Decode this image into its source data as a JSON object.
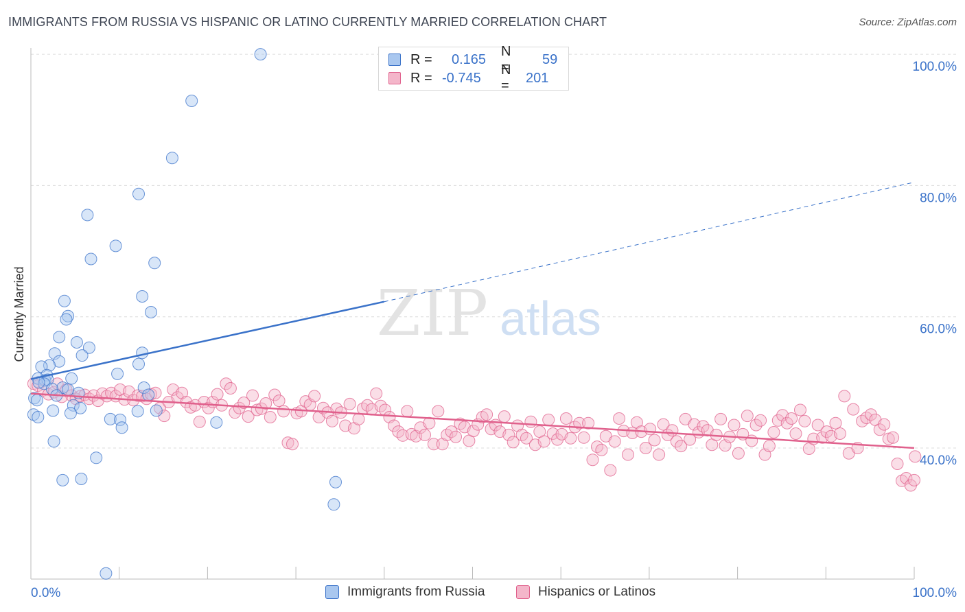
{
  "title": "IMMIGRANTS FROM RUSSIA VS HISPANIC OR LATINO CURRENTLY MARRIED CORRELATION CHART",
  "source": "Source: ZipAtlas.com",
  "watermark": {
    "zip": "ZIP",
    "atlas": "atlas"
  },
  "legend": {
    "r_label": "R =",
    "n_label": "N =",
    "rows": [
      {
        "r": "0.165",
        "n": "59"
      },
      {
        "r": "-0.745",
        "n": "201"
      }
    ]
  },
  "bottom_legend": [
    "Immigrants from Russia",
    "Hispanics or Latinos"
  ],
  "colors": {
    "blue": "#3a72c9",
    "blue_fill": "#a9c7ef",
    "pink": "#e0608c",
    "pink_fill": "#f4b6ca",
    "grid": "#dcdcdc"
  },
  "chart_data": {
    "type": "scatter",
    "ylabel": "Currently Married",
    "xlabel": "",
    "xlim": [
      0,
      100
    ],
    "ylim": [
      20,
      102
    ],
    "x_tick_labels": [
      "0.0%",
      "100.0%"
    ],
    "y_tick_labels": [
      "40.0%",
      "60.0%",
      "80.0%",
      "100.0%"
    ],
    "y_tick_values": [
      40,
      60,
      80,
      100
    ],
    "grid": true,
    "legend_placement": "top-center",
    "series": [
      {
        "name": "Immigrants from Russia",
        "color": "#3a72c9",
        "points": [
          [
            26,
            100
          ],
          [
            18.2,
            92.9
          ],
          [
            16,
            84.2
          ],
          [
            12.2,
            78.7
          ],
          [
            6.4,
            75.5
          ],
          [
            9.6,
            70.8
          ],
          [
            6.8,
            68.8
          ],
          [
            14,
            68.2
          ],
          [
            3.8,
            62.4
          ],
          [
            12.6,
            63.1
          ],
          [
            13.6,
            60.7
          ],
          [
            4.2,
            60.1
          ],
          [
            4,
            59.6
          ],
          [
            3.2,
            56.9
          ],
          [
            5.2,
            56.1
          ],
          [
            6.6,
            55.3
          ],
          [
            5.8,
            54.1
          ],
          [
            12.6,
            54.5
          ],
          [
            2.7,
            54.4
          ],
          [
            3.2,
            53.2
          ],
          [
            12.2,
            52.8
          ],
          [
            2.1,
            52.6
          ],
          [
            1.2,
            52.4
          ],
          [
            9.8,
            51.3
          ],
          [
            1.8,
            51.1
          ],
          [
            0.8,
            50.6
          ],
          [
            4.6,
            50.6
          ],
          [
            1.6,
            50.3
          ],
          [
            1.9,
            50.4
          ],
          [
            1.5,
            49.8
          ],
          [
            0.9,
            50.0
          ],
          [
            3.6,
            49.2
          ],
          [
            12.8,
            49.2
          ],
          [
            4.2,
            48.9
          ],
          [
            2.4,
            49.0
          ],
          [
            5.4,
            48.4
          ],
          [
            13.3,
            48.1
          ],
          [
            2.9,
            48.0
          ],
          [
            0.4,
            47.6
          ],
          [
            0.7,
            47.3
          ],
          [
            4.8,
            46.5
          ],
          [
            5.6,
            46.1
          ],
          [
            2.5,
            45.7
          ],
          [
            14.2,
            45.7
          ],
          [
            0.3,
            45.1
          ],
          [
            12.1,
            45.6
          ],
          [
            4.5,
            45.3
          ],
          [
            0.8,
            44.7
          ],
          [
            9.0,
            44.4
          ],
          [
            10.1,
            44.3
          ],
          [
            21,
            43.9
          ],
          [
            10.3,
            43.1
          ],
          [
            2.6,
            41.0
          ],
          [
            7.4,
            38.5
          ],
          [
            3.6,
            35.1
          ],
          [
            5.7,
            35.3
          ],
          [
            34.5,
            34.8
          ],
          [
            34.3,
            31.4
          ],
          [
            8.5,
            20.9
          ]
        ],
        "trend": {
          "x0": 0,
          "y0": 50.5,
          "x1": 40,
          "y1": 62.3,
          "dashed_to_x": 100,
          "dashed_to_y": 80.5
        }
      },
      {
        "name": "Hispanics or Latinos",
        "color": "#e0608c",
        "points": [
          [
            0.3,
            49.8
          ],
          [
            0.8,
            49.5
          ],
          [
            1.4,
            48.8
          ],
          [
            2,
            48.2
          ],
          [
            2.6,
            48.5
          ],
          [
            3,
            49.8
          ],
          [
            3.5,
            47.8
          ],
          [
            4,
            48.9
          ],
          [
            4.6,
            48.0
          ],
          [
            5.1,
            47.5
          ],
          [
            5.6,
            47.9
          ],
          [
            6.1,
            48.1
          ],
          [
            6.6,
            47.5
          ],
          [
            7.1,
            48.0
          ],
          [
            7.6,
            47.2
          ],
          [
            8.1,
            48.3
          ],
          [
            8.6,
            47.9
          ],
          [
            9.1,
            48.4
          ],
          [
            9.6,
            47.9
          ],
          [
            10.1,
            48.9
          ],
          [
            10.6,
            47.4
          ],
          [
            11.1,
            48.6
          ],
          [
            11.6,
            47.3
          ],
          [
            12.1,
            48.0
          ],
          [
            12.6,
            47.9
          ],
          [
            13.1,
            47.5
          ],
          [
            13.6,
            48.2
          ],
          [
            14.1,
            48.4
          ],
          [
            14.6,
            46.1
          ],
          [
            15.1,
            44.9
          ],
          [
            15.6,
            47.0
          ],
          [
            16.1,
            48.9
          ],
          [
            16.6,
            47.7
          ],
          [
            17.1,
            48.4
          ],
          [
            17.6,
            47.0
          ],
          [
            18.1,
            46.2
          ],
          [
            18.6,
            46.5
          ],
          [
            19.1,
            44.0
          ],
          [
            19.6,
            47.0
          ],
          [
            20.1,
            46.1
          ],
          [
            20.6,
            47.0
          ],
          [
            21.1,
            48.2
          ],
          [
            21.6,
            46.5
          ],
          [
            22.1,
            49.8
          ],
          [
            22.6,
            49.1
          ],
          [
            23.1,
            45.4
          ],
          [
            23.6,
            46.1
          ],
          [
            24.1,
            46.9
          ],
          [
            24.6,
            44.8
          ],
          [
            25.1,
            48.0
          ],
          [
            25.6,
            45.8
          ],
          [
            26.1,
            46.0
          ],
          [
            26.6,
            46.8
          ],
          [
            27.1,
            44.7
          ],
          [
            27.6,
            48.1
          ],
          [
            28.1,
            47.2
          ],
          [
            28.6,
            45.6
          ],
          [
            29.1,
            40.8
          ],
          [
            29.6,
            40.6
          ],
          [
            30.1,
            45.3
          ],
          [
            30.6,
            45.6
          ],
          [
            31.1,
            47.1
          ],
          [
            31.6,
            46.6
          ],
          [
            32.1,
            47.9
          ],
          [
            32.6,
            44.7
          ],
          [
            33.1,
            46.1
          ],
          [
            33.6,
            45.4
          ],
          [
            34.1,
            44.1
          ],
          [
            34.6,
            46.0
          ],
          [
            35.1,
            45.4
          ],
          [
            35.6,
            43.4
          ],
          [
            36.1,
            46.7
          ],
          [
            36.6,
            43.0
          ],
          [
            37.1,
            44.4
          ],
          [
            37.6,
            46.0
          ],
          [
            38.1,
            46.5
          ],
          [
            38.6,
            45.9
          ],
          [
            39.1,
            48.3
          ],
          [
            39.6,
            46.4
          ],
          [
            40.1,
            45.8
          ],
          [
            40.6,
            44.7
          ],
          [
            41.1,
            43.4
          ],
          [
            41.6,
            42.5
          ],
          [
            42.1,
            41.9
          ],
          [
            42.6,
            45.6
          ],
          [
            43.1,
            42.1
          ],
          [
            43.6,
            41.8
          ],
          [
            44.1,
            43.1
          ],
          [
            44.6,
            42.0
          ],
          [
            45.1,
            43.8
          ],
          [
            45.6,
            40.6
          ],
          [
            46.1,
            45.6
          ],
          [
            46.6,
            40.6
          ],
          [
            47.1,
            42.0
          ],
          [
            47.6,
            42.5
          ],
          [
            48.1,
            41.7
          ],
          [
            48.6,
            43.7
          ],
          [
            49.1,
            43.2
          ],
          [
            49.6,
            41.1
          ],
          [
            50.1,
            42.6
          ],
          [
            50.6,
            43.6
          ],
          [
            51.1,
            44.7
          ],
          [
            51.6,
            45.1
          ],
          [
            52.1,
            42.9
          ],
          [
            52.6,
            43.5
          ],
          [
            53.1,
            42.5
          ],
          [
            53.6,
            44.8
          ],
          [
            54.1,
            42.0
          ],
          [
            54.6,
            40.9
          ],
          [
            55.1,
            43.4
          ],
          [
            55.6,
            42.0
          ],
          [
            56.1,
            41.5
          ],
          [
            56.6,
            44.0
          ],
          [
            57.1,
            40.5
          ],
          [
            57.6,
            42.5
          ],
          [
            58.1,
            41.0
          ],
          [
            58.6,
            44.3
          ],
          [
            59.1,
            42.2
          ],
          [
            59.6,
            41.3
          ],
          [
            60.1,
            42.1
          ],
          [
            60.6,
            44.5
          ],
          [
            61.1,
            41.5
          ],
          [
            61.6,
            43.2
          ],
          [
            62.1,
            43.8
          ],
          [
            62.6,
            41.6
          ],
          [
            63.1,
            43.8
          ],
          [
            63.6,
            38.2
          ],
          [
            64.1,
            40.2
          ],
          [
            64.6,
            39.7
          ],
          [
            65.1,
            41.8
          ],
          [
            65.6,
            36.6
          ],
          [
            66.1,
            41.0
          ],
          [
            66.6,
            44.5
          ],
          [
            67.1,
            42.6
          ],
          [
            67.6,
            39.0
          ],
          [
            68.1,
            42.3
          ],
          [
            68.6,
            43.9
          ],
          [
            69.1,
            42.5
          ],
          [
            69.6,
            40.0
          ],
          [
            70.1,
            42.9
          ],
          [
            70.6,
            41.2
          ],
          [
            71.1,
            39.0
          ],
          [
            71.6,
            43.6
          ],
          [
            72.1,
            42.0
          ],
          [
            72.6,
            42.7
          ],
          [
            73.1,
            41.0
          ],
          [
            73.6,
            40.3
          ],
          [
            74.1,
            44.4
          ],
          [
            74.6,
            41.3
          ],
          [
            75.1,
            43.6
          ],
          [
            75.6,
            42.4
          ],
          [
            76.1,
            43.3
          ],
          [
            76.6,
            42.7
          ],
          [
            77.1,
            40.5
          ],
          [
            77.6,
            42.0
          ],
          [
            78.1,
            44.4
          ],
          [
            78.6,
            40.4
          ],
          [
            79.1,
            41.7
          ],
          [
            79.6,
            43.5
          ],
          [
            80.1,
            39.2
          ],
          [
            80.6,
            42.1
          ],
          [
            81.1,
            44.9
          ],
          [
            81.6,
            41.1
          ],
          [
            82.1,
            43.5
          ],
          [
            82.6,
            44.2
          ],
          [
            83.1,
            39.0
          ],
          [
            83.6,
            40.3
          ],
          [
            84.1,
            42.4
          ],
          [
            84.6,
            44.2
          ],
          [
            85.1,
            45.0
          ],
          [
            85.6,
            43.8
          ],
          [
            86.1,
            44.5
          ],
          [
            86.6,
            42.2
          ],
          [
            87.1,
            45.8
          ],
          [
            87.6,
            44.1
          ],
          [
            88.1,
            39.9
          ],
          [
            88.6,
            41.4
          ],
          [
            89.1,
            43.5
          ],
          [
            89.6,
            41.6
          ],
          [
            90.1,
            42.5
          ],
          [
            90.6,
            41.8
          ],
          [
            91.1,
            43.8
          ],
          [
            91.6,
            42.2
          ],
          [
            92.1,
            47.9
          ],
          [
            92.6,
            39.2
          ],
          [
            93.1,
            45.9
          ],
          [
            93.6,
            40.0
          ],
          [
            94.1,
            44.1
          ],
          [
            94.6,
            44.6
          ],
          [
            95.1,
            45.1
          ],
          [
            95.6,
            44.3
          ],
          [
            96.1,
            42.8
          ],
          [
            96.6,
            43.6
          ],
          [
            97.1,
            41.4
          ],
          [
            97.6,
            41.6
          ],
          [
            98.1,
            37.6
          ],
          [
            98.6,
            35.0
          ],
          [
            99.1,
            35.4
          ],
          [
            99.6,
            34.3
          ],
          [
            100.0,
            35.1
          ],
          [
            100.1,
            38.7
          ]
        ],
        "trend": {
          "x0": 0,
          "y0": 48.3,
          "x1": 100,
          "y1": 40.0
        }
      }
    ]
  }
}
